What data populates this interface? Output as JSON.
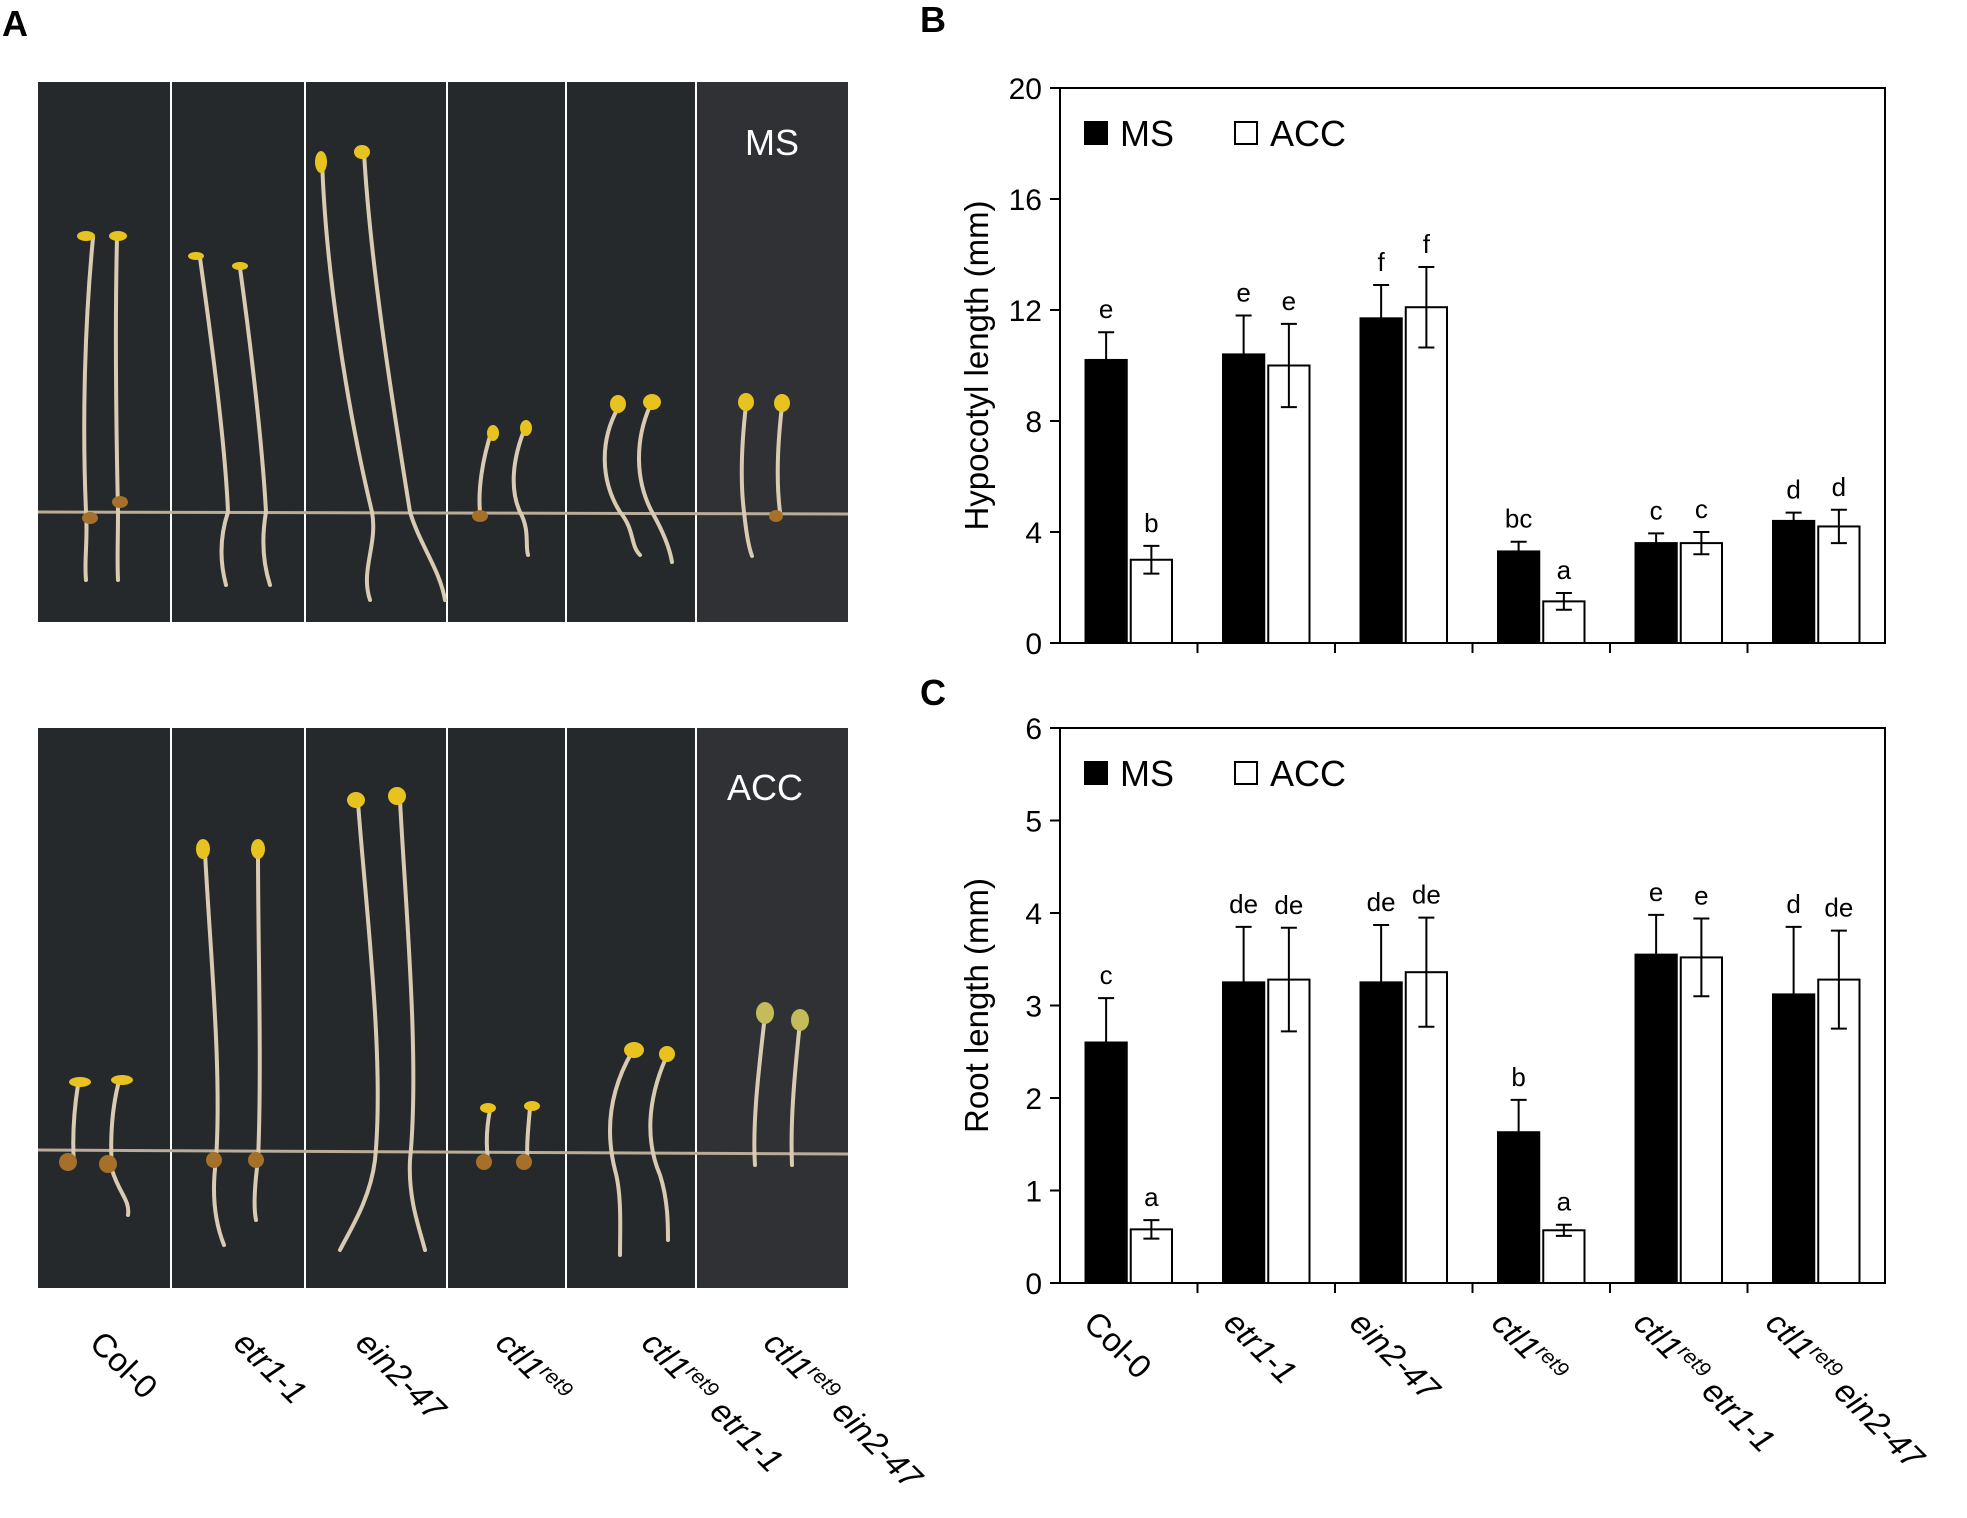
{
  "panels": {
    "a": "A",
    "b": "B",
    "c": "C"
  },
  "photos": {
    "top_label": "MS",
    "bottom_label": "ACC"
  },
  "legend": {
    "ms": "MS",
    "acc": "ACC"
  },
  "genotypes": [
    {
      "parts": [
        {
          "t": "Col-0",
          "s": "plain"
        }
      ]
    },
    {
      "parts": [
        {
          "t": "etr1-1",
          "s": "it"
        }
      ]
    },
    {
      "parts": [
        {
          "t": "ein2-47",
          "s": "it"
        }
      ]
    },
    {
      "parts": [
        {
          "t": "ctl1",
          "s": "it"
        },
        {
          "t": "ret9",
          "s": "sup"
        }
      ]
    },
    {
      "parts": [
        {
          "t": "ctl1",
          "s": "it"
        },
        {
          "t": "ret9",
          "s": "sup"
        },
        {
          "t": " etr1-1",
          "s": "it"
        }
      ]
    },
    {
      "parts": [
        {
          "t": "ctl1",
          "s": "it"
        },
        {
          "t": "ret9",
          "s": "sup"
        },
        {
          "t": " ein2-47",
          "s": "it"
        }
      ]
    }
  ],
  "colors": {
    "ms": "#000000",
    "acc": "#ffffff",
    "photo_bg": "#26292b",
    "photo_bg_alt": "#2e3033",
    "seedling": "#d9cbb2",
    "cotyledon": "#e8c320"
  },
  "chart_data": [
    {
      "type": "bar",
      "panel": "B",
      "title": "",
      "xlabel": "",
      "ylabel": "Hypocotyl length (mm)",
      "ylim": [
        0,
        20
      ],
      "yticks": [
        0,
        4,
        8,
        12,
        16,
        20
      ],
      "legend_position": "top-left",
      "categories": [
        "Col-0",
        "etr1-1",
        "ein2-47",
        "ctl1ret9",
        "ctl1ret9 etr1-1",
        "ctl1ret9 ein2-47"
      ],
      "series": [
        {
          "name": "MS",
          "values": [
            10.2,
            10.4,
            11.7,
            3.3,
            3.6,
            4.4
          ],
          "errors": [
            1.0,
            1.4,
            1.2,
            0.35,
            0.35,
            0.3
          ],
          "letters": [
            "e",
            "e",
            "f",
            "bc",
            "c",
            "d"
          ]
        },
        {
          "name": "ACC",
          "values": [
            3.0,
            10.0,
            12.1,
            1.5,
            3.6,
            4.2
          ],
          "errors": [
            0.5,
            1.5,
            1.45,
            0.3,
            0.4,
            0.6
          ],
          "letters": [
            "b",
            "e",
            "f",
            "a",
            "c",
            "d"
          ]
        }
      ]
    },
    {
      "type": "bar",
      "panel": "C",
      "title": "",
      "xlabel": "",
      "ylabel": "Root length (mm)",
      "ylim": [
        0,
        6
      ],
      "yticks": [
        0,
        1,
        2,
        3,
        4,
        5,
        6
      ],
      "legend_position": "top-left",
      "categories": [
        "Col-0",
        "etr1-1",
        "ein2-47",
        "ctl1ret9",
        "ctl1ret9 etr1-1",
        "ctl1ret9 ein2-47"
      ],
      "series": [
        {
          "name": "MS",
          "values": [
            2.6,
            3.25,
            3.25,
            1.63,
            3.55,
            3.12
          ],
          "errors": [
            0.48,
            0.6,
            0.62,
            0.35,
            0.43,
            0.73
          ],
          "letters": [
            "c",
            "de",
            "de",
            "b",
            "e",
            "d"
          ]
        },
        {
          "name": "ACC",
          "values": [
            0.58,
            3.28,
            3.36,
            0.57,
            3.52,
            3.28
          ],
          "errors": [
            0.1,
            0.56,
            0.59,
            0.06,
            0.42,
            0.53
          ],
          "letters": [
            "a",
            "de",
            "de",
            "a",
            "e",
            "de"
          ]
        }
      ]
    }
  ]
}
